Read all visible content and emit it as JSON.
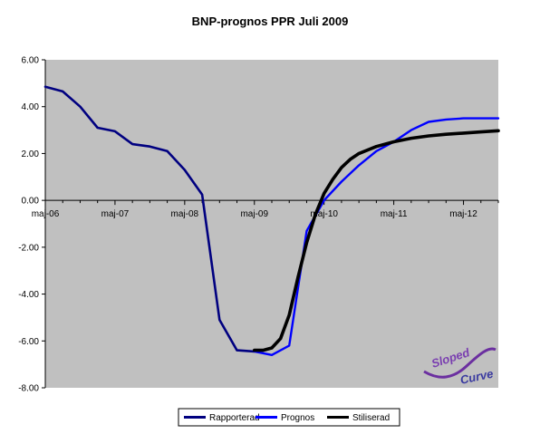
{
  "chart_data": {
    "type": "line",
    "title": "BNP-prognos PPR Juli 2009",
    "xlabel": "",
    "ylabel": "",
    "x_tick_labels": [
      "maj-06",
      "maj-07",
      "maj-08",
      "maj-09",
      "maj-10",
      "maj-11",
      "maj-12"
    ],
    "y_tick_labels": [
      "6.00",
      "4.00",
      "2.00",
      "0.00",
      "-2.00",
      "-4.00",
      "-6.00",
      "-8.00"
    ],
    "ylim": [
      -8,
      6
    ],
    "xlim": [
      0,
      26
    ],
    "x_unit": "quarters since maj-06",
    "grid": false,
    "plot_background": "#c0c0c0",
    "legend_position": "bottom",
    "series": [
      {
        "name": "Rapporterad",
        "color": "#000080",
        "x": [
          0,
          1,
          2,
          3,
          4,
          5,
          6,
          7,
          8,
          9,
          10,
          11,
          12
        ],
        "y": [
          4.85,
          4.65,
          4.0,
          3.1,
          2.95,
          2.4,
          2.3,
          2.1,
          1.3,
          0.25,
          -5.1,
          -6.4,
          -6.45
        ]
      },
      {
        "name": "Prognos",
        "color": "#0000ff",
        "x": [
          12,
          13,
          14,
          15,
          16,
          17,
          18,
          19,
          20,
          21,
          22,
          23,
          24,
          25,
          26
        ],
        "y": [
          -6.45,
          -6.6,
          -6.2,
          -1.3,
          0.0,
          0.8,
          1.5,
          2.1,
          2.5,
          3.0,
          3.35,
          3.45,
          3.5,
          3.5,
          3.5
        ]
      },
      {
        "name": "Stiliserad",
        "color": "#000000",
        "x": [
          12,
          12.5,
          13,
          13.5,
          14,
          14.5,
          15,
          15.5,
          16,
          16.5,
          17,
          17.5,
          18,
          19,
          20,
          21,
          22,
          23,
          24,
          25,
          26
        ],
        "y": [
          -6.4,
          -6.4,
          -6.3,
          -5.9,
          -4.9,
          -3.3,
          -1.8,
          -0.6,
          0.3,
          0.9,
          1.4,
          1.75,
          2.0,
          2.3,
          2.5,
          2.65,
          2.75,
          2.82,
          2.87,
          2.92,
          2.97
        ]
      }
    ]
  },
  "logo": {
    "line1": "Sloped",
    "line2": "Curve"
  }
}
